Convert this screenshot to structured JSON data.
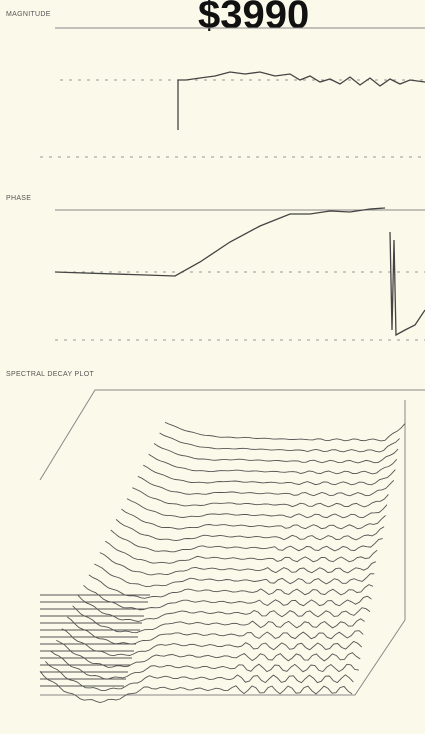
{
  "header": {
    "price": "$3990"
  },
  "panels": [
    {
      "label": "MAGNITUDE"
    },
    {
      "label": "PHASE"
    },
    {
      "label": "SPECTRAL DECAY PLOT"
    }
  ]
}
